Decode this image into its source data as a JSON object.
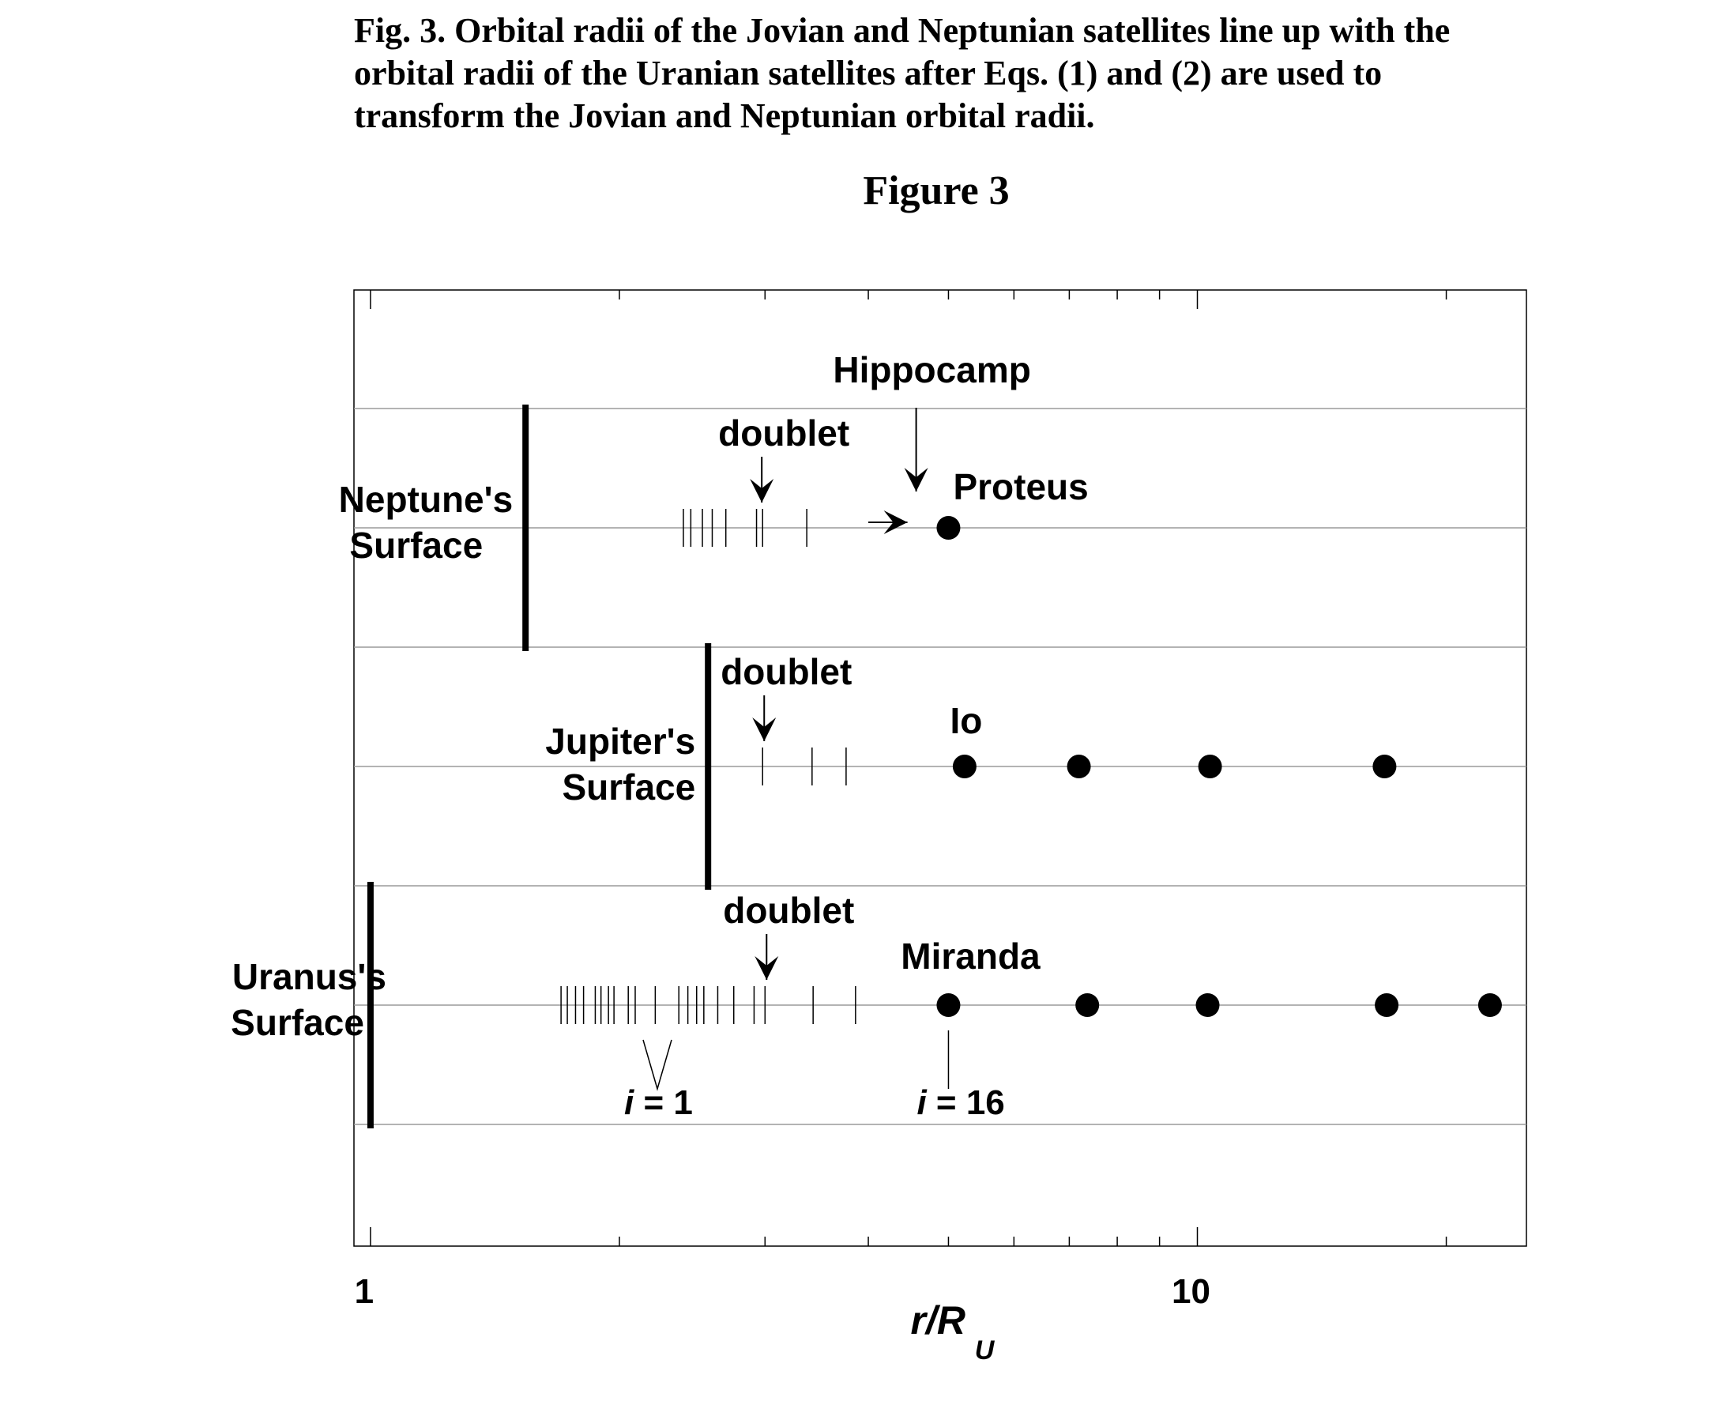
{
  "caption": "Fig. 3. Orbital radii of the Jovian and Neptunian satellites line up with the orbital radii of the Uranian satellites after Eqs. (1) and (2) are used to transform the Jovian and Neptunian orbital radii.",
  "figure_heading": "Figure 3",
  "colors": {
    "ink": "#000000",
    "grid": "#9a9a9a",
    "background": "#ffffff"
  },
  "chart_data": {
    "type": "scatter",
    "x_scale": "log",
    "xlim": [
      0.955,
      25
    ],
    "xticks": [
      1,
      10
    ],
    "xtick_labels": [
      "1",
      "10"
    ],
    "x_minor_ticks": [
      2,
      3,
      4,
      5,
      6,
      7,
      8,
      9,
      20
    ],
    "xlabel": {
      "main": "r/R",
      "subscript": "U"
    },
    "grid": true,
    "rows": [
      {
        "label_line1": "Neptune's",
        "label_line2": "Surface",
        "surface_x": 1.54,
        "small_satellites_x": [
          2.39,
          2.44,
          2.52,
          2.59,
          2.69,
          2.93,
          2.98,
          3.37
        ],
        "large_satellites_x": [
          5.0
        ],
        "annotations": [
          {
            "text": "doublet",
            "target_x": 2.96
          },
          {
            "text": "Hippocamp",
            "target_x": 4.55
          },
          {
            "text": "Proteus",
            "target_x": 5.0
          }
        ],
        "shift_arrow_x": [
          4.0,
          4.5
        ],
        "shift_target_x": 4.55
      },
      {
        "label_line1": "Jupiter's",
        "label_line2": "Surface",
        "surface_x": 2.56,
        "small_satellites_x": [
          2.98,
          3.42,
          3.76
        ],
        "large_satellites_x": [
          5.23,
          7.19,
          10.36,
          16.84
        ],
        "annotations": [
          {
            "text": "doublet",
            "target_x": 2.98
          },
          {
            "text": "Io",
            "target_x": 5.23
          }
        ]
      },
      {
        "label_line1": "Uranus's",
        "label_line2": "Surface",
        "surface_x": 1.0,
        "small_satellites_x": [
          1.7,
          1.73,
          1.77,
          1.81,
          1.87,
          1.9,
          1.94,
          1.97,
          2.05,
          2.09,
          2.21,
          2.36,
          2.42,
          2.48,
          2.53,
          2.63,
          2.75,
          2.91,
          3.0,
          3.43,
          3.86
        ],
        "large_satellites_x": [
          5.0,
          7.36,
          10.29,
          16.94,
          22.59
        ],
        "annotations": [
          {
            "text": "doublet",
            "target_x": 3.0
          },
          {
            "text": "Miranda",
            "target_x": 5.0
          }
        ],
        "index_labels": [
          {
            "prefix": "i",
            "text": " = 1",
            "target_x": 1.7
          },
          {
            "prefix": "i",
            "text": " = 16",
            "target_x": 5.0
          }
        ]
      }
    ]
  }
}
